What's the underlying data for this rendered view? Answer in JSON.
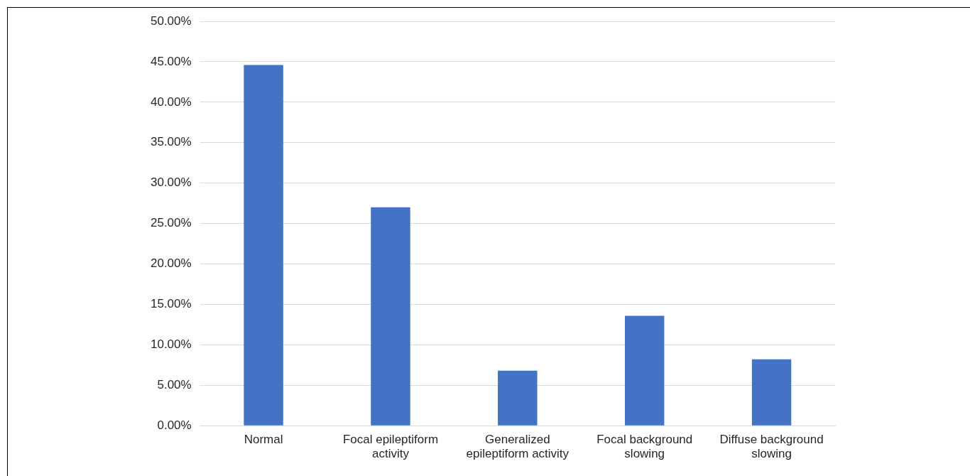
{
  "chart_data": {
    "type": "bar",
    "categories": [
      "Normal",
      "Focal epileptiform activity",
      "Generalized epileptiform activity",
      "Focal background slowing",
      "Diffuse background slowing"
    ],
    "values": [
      44.6,
      27.0,
      6.8,
      13.6,
      8.2
    ],
    "color": "#4472c4",
    "ylim": [
      0,
      50
    ],
    "yticks": [
      {
        "value": 0,
        "label": "0.00%"
      },
      {
        "value": 5,
        "label": "5.00%"
      },
      {
        "value": 10,
        "label": "10.00%"
      },
      {
        "value": 15,
        "label": "15.00%"
      },
      {
        "value": 20,
        "label": "20.00%"
      },
      {
        "value": 25,
        "label": "25.00%"
      },
      {
        "value": 30,
        "label": "30.00%"
      },
      {
        "value": 35,
        "label": "35.00%"
      },
      {
        "value": 40,
        "label": "40.00%"
      },
      {
        "value": 45,
        "label": "45.00%"
      },
      {
        "value": 50,
        "label": "50.00%"
      }
    ],
    "grid": "y"
  }
}
